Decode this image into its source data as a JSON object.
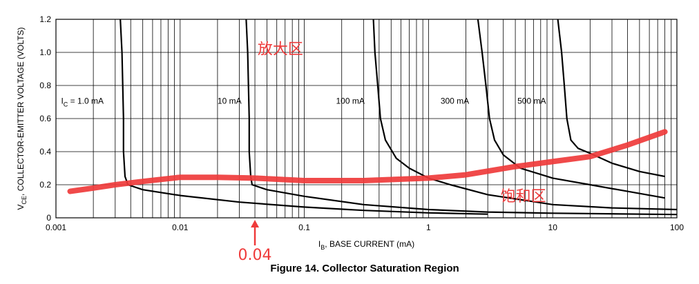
{
  "chart_data": {
    "type": "line",
    "title": "Figure 14. Collector Saturation Region",
    "x_axis": {
      "label_main": "I",
      "label_sub": "B",
      "label_rest": ", BASE CURRENT (mA)",
      "scale": "log",
      "range": [
        0.001,
        100
      ],
      "tick_labels": [
        "0.001",
        "0.01",
        "0.1",
        "1",
        "10",
        "100"
      ],
      "tick_values": [
        0.001,
        0.01,
        0.1,
        1,
        10,
        100
      ]
    },
    "y_axis": {
      "label_main": "V",
      "label_sub": "CE",
      "label_rest": ", COLLECTOR-EMITTER VOLTAGE (VOLTS)",
      "scale": "linear",
      "range": [
        0,
        1.2
      ],
      "tick_labels": [
        "0",
        "0.2",
        "0.4",
        "0.6",
        "0.8",
        "1.0",
        "1.2"
      ],
      "tick_values": [
        0,
        0.2,
        0.4,
        0.6,
        0.8,
        1.0,
        1.2
      ]
    },
    "grid": "log-decade vertical lines, horizontal lines every 0.2 V",
    "series": [
      {
        "name": "1.0 mA",
        "label_prefix": "I",
        "label_sub": "C",
        "label_text": " = 1.0 mA",
        "label_x": 0.0011,
        "label_y": 0.69,
        "color": "#000000",
        "points": [
          [
            0.0033,
            1.2
          ],
          [
            0.0034,
            1.0
          ],
          [
            0.00345,
            0.8
          ],
          [
            0.0035,
            0.6
          ],
          [
            0.0035,
            0.4
          ],
          [
            0.0036,
            0.25
          ],
          [
            0.0038,
            0.2
          ],
          [
            0.005,
            0.17
          ],
          [
            0.01,
            0.135
          ],
          [
            0.03,
            0.095
          ],
          [
            0.1,
            0.065
          ],
          [
            0.3,
            0.045
          ],
          [
            1,
            0.03
          ],
          [
            3,
            0.022
          ]
        ]
      },
      {
        "name": "10 mA",
        "label_text": "10 mA",
        "label_x": 0.02,
        "label_y": 0.69,
        "color": "#000000",
        "points": [
          [
            0.034,
            1.2
          ],
          [
            0.035,
            1.0
          ],
          [
            0.0355,
            0.8
          ],
          [
            0.036,
            0.6
          ],
          [
            0.036,
            0.4
          ],
          [
            0.037,
            0.25
          ],
          [
            0.038,
            0.2
          ],
          [
            0.05,
            0.17
          ],
          [
            0.1,
            0.13
          ],
          [
            0.3,
            0.08
          ],
          [
            1,
            0.05
          ],
          [
            3,
            0.035
          ],
          [
            10,
            0.028
          ],
          [
            100,
            0.02
          ]
        ]
      },
      {
        "name": "100 mA",
        "label_text": "100 mA",
        "label_x": 0.18,
        "label_y": 0.69,
        "color": "#000000",
        "points": [
          [
            0.36,
            1.2
          ],
          [
            0.37,
            1.0
          ],
          [
            0.39,
            0.8
          ],
          [
            0.41,
            0.6
          ],
          [
            0.45,
            0.47
          ],
          [
            0.55,
            0.36
          ],
          [
            0.7,
            0.3
          ],
          [
            1.0,
            0.24
          ],
          [
            1.5,
            0.2
          ],
          [
            3,
            0.14
          ],
          [
            10,
            0.08
          ],
          [
            30,
            0.06
          ],
          [
            100,
            0.05
          ]
        ]
      },
      {
        "name": "300 mA",
        "label_text": "300 mA",
        "label_x": 1.25,
        "label_y": 0.69,
        "color": "#000000",
        "points": [
          [
            2.5,
            1.2
          ],
          [
            2.7,
            1.0
          ],
          [
            2.9,
            0.8
          ],
          [
            3.1,
            0.6
          ],
          [
            3.4,
            0.47
          ],
          [
            4,
            0.38
          ],
          [
            5.5,
            0.3
          ],
          [
            10,
            0.24
          ],
          [
            20,
            0.2
          ],
          [
            40,
            0.16
          ],
          [
            80,
            0.12
          ]
        ]
      },
      {
        "name": "500 mA",
        "label_text": "500 mA",
        "label_x": 5.2,
        "label_y": 0.69,
        "color": "#000000",
        "points": [
          [
            11,
            1.2
          ],
          [
            11.8,
            1.0
          ],
          [
            12.4,
            0.8
          ],
          [
            13,
            0.6
          ],
          [
            14,
            0.47
          ],
          [
            16,
            0.42
          ],
          [
            20,
            0.39
          ],
          [
            30,
            0.33
          ],
          [
            50,
            0.28
          ],
          [
            80,
            0.25
          ]
        ]
      }
    ],
    "saturation_boundary": {
      "color": "#ef3b3b",
      "points": [
        [
          0.0013,
          0.16
        ],
        [
          0.002,
          0.18
        ],
        [
          0.003,
          0.2
        ],
        [
          0.005,
          0.22
        ],
        [
          0.01,
          0.245
        ],
        [
          0.02,
          0.245
        ],
        [
          0.04,
          0.24
        ],
        [
          0.1,
          0.225
        ],
        [
          0.3,
          0.225
        ],
        [
          1,
          0.24
        ],
        [
          2,
          0.26
        ],
        [
          5,
          0.31
        ],
        [
          10,
          0.34
        ],
        [
          20,
          0.37
        ],
        [
          40,
          0.44
        ],
        [
          80,
          0.52
        ]
      ]
    },
    "annotations": {
      "active_region_label": "放大区",
      "active_region_x": 0.042,
      "active_region_y": 0.99,
      "saturation_region_label": "饱和区",
      "saturation_region_x": 3.8,
      "saturation_region_y": 0.1,
      "marker_label": "0.04",
      "marker_value": 0.04,
      "marker_color": "#ef3b3b"
    }
  }
}
